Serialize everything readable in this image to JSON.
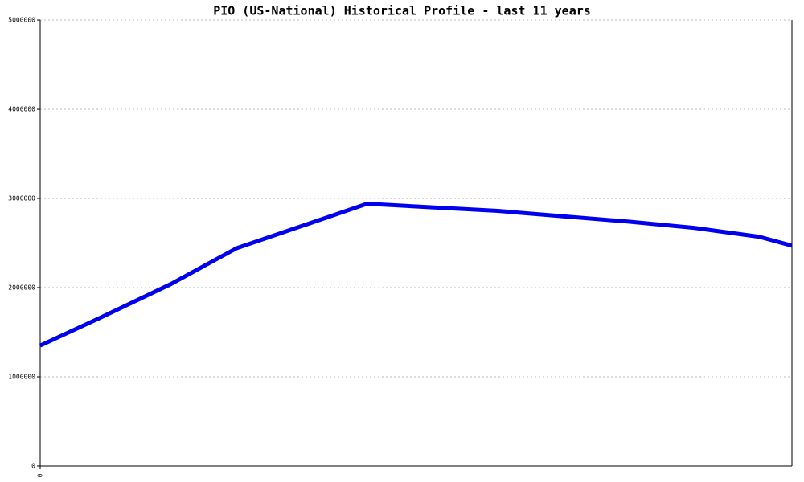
{
  "chart_data": {
    "type": "line",
    "title": "PIO (US-National) Historical Profile - last 11 years",
    "x": [
      0,
      1,
      2,
      3,
      4,
      5,
      6,
      7,
      8,
      9,
      10,
      11,
      11.5
    ],
    "series": [
      {
        "name": "PIO",
        "color": "#0000ee",
        "values": [
          1350000,
          1690000,
          2040000,
          2440000,
          2690000,
          2940000,
          2900000,
          2860000,
          2800000,
          2740000,
          2670000,
          2570000,
          2470000
        ]
      }
    ],
    "xlim": [
      0,
      11.5
    ],
    "xticks": [
      0
    ],
    "ylim": [
      0,
      5000000
    ],
    "yticks": [
      0,
      1000000,
      2000000,
      3000000,
      4000000,
      5000000
    ],
    "grid": true
  }
}
